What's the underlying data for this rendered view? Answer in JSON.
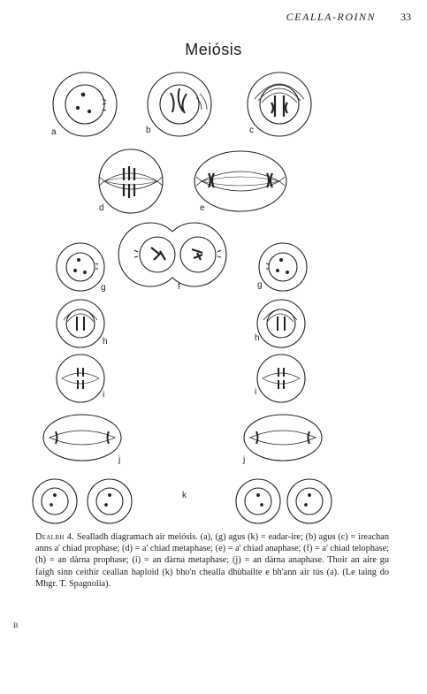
{
  "header": {
    "running_title": "CEALLA-ROINN",
    "page_number": "33"
  },
  "figure": {
    "title": "Meiósis",
    "labels": [
      "a",
      "b",
      "c",
      "d",
      "e",
      "f",
      "g",
      "g",
      "h",
      "h",
      "i",
      "i",
      "j",
      "j",
      "k"
    ]
  },
  "caption": {
    "lead": "Dealbh 4.",
    "text": " Sealladh diagramach air meiósis. (a), (g) agus (k) = eadar-ire; (b) agus (c) = ìreachan anns a' chiad prophase; (d) = a' chiad metaphase; (e) = a' chiad anaphase; (f) = a' chiad telophase; (h) = an dàrna prophase; (i) = an dàrna metaphase; (j) = an dàrna anaphase. Thoir an aire gu faigh sinn ceithir ceallan haploid (k) bho'n chealla dhùbailte e bh'ann air tùs (a). (Le taing do Mhgr. T. Spagnolia)."
  },
  "signature": "B"
}
